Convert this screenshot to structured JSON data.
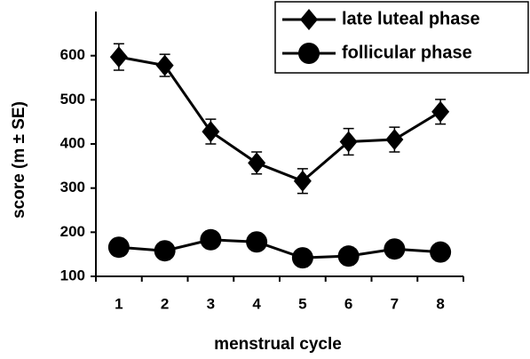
{
  "chart_data": {
    "type": "line",
    "x_label": "menstrual cycle",
    "y_label": "score (m ± SE)",
    "categories": [
      "1",
      "2",
      "3",
      "4",
      "5",
      "6",
      "7",
      "8"
    ],
    "series": [
      {
        "name": "late luteal phase",
        "color": "#000000",
        "marker": "diamond",
        "values": [
          597,
          578,
          428,
          357,
          316,
          405,
          410,
          473
        ],
        "errors": [
          30,
          25,
          28,
          25,
          28,
          30,
          28,
          28
        ]
      },
      {
        "name": "follicular phase",
        "color": "#000000",
        "marker": "circle",
        "values": [
          166,
          158,
          183,
          178,
          142,
          146,
          162,
          155
        ],
        "errors": [
          20,
          20,
          20,
          20,
          20,
          20,
          20,
          20
        ]
      }
    ],
    "ylim": [
      100,
      700
    ],
    "yticks": [
      100,
      200,
      300,
      400,
      500,
      600
    ],
    "legend": "top-right",
    "grid": false
  }
}
